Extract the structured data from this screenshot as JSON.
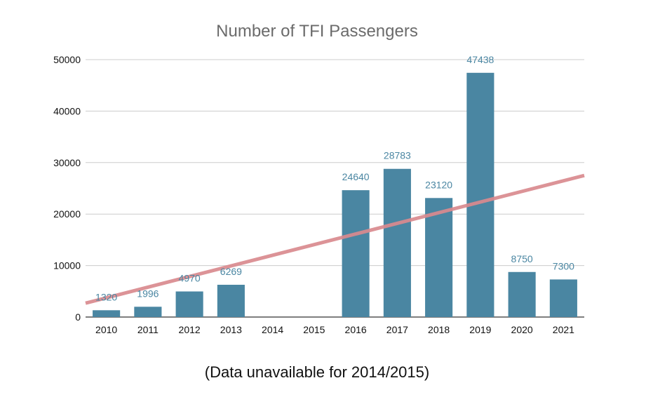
{
  "chart_data": {
    "type": "bar",
    "title": "Number of TFI Passengers",
    "caption": "(Data unavailable for 2014/2015)",
    "categories": [
      "2010",
      "2011",
      "2012",
      "2013",
      "2014",
      "2015",
      "2016",
      "2017",
      "2018",
      "2019",
      "2020",
      "2021"
    ],
    "values": [
      1320,
      1996,
      4970,
      6269,
      null,
      null,
      24640,
      28783,
      23120,
      47438,
      8750,
      7300
    ],
    "data_labels": [
      "1320",
      "1996",
      "4970",
      "6269",
      "",
      "",
      "24640",
      "28783",
      "23120",
      "47438",
      "8750",
      "7300"
    ],
    "yticks": [
      "0",
      "10000",
      "20000",
      "30000",
      "40000",
      "50000"
    ],
    "ylim": [
      0,
      50000
    ],
    "grid": true,
    "trendline": {
      "type": "linear",
      "start_value": 2700,
      "end_value": 27500
    },
    "colors": {
      "bar": "#4a86a2",
      "trendline": "#d98a8e",
      "data_label": "#4a86a2",
      "gridline": "#cccccc"
    }
  }
}
